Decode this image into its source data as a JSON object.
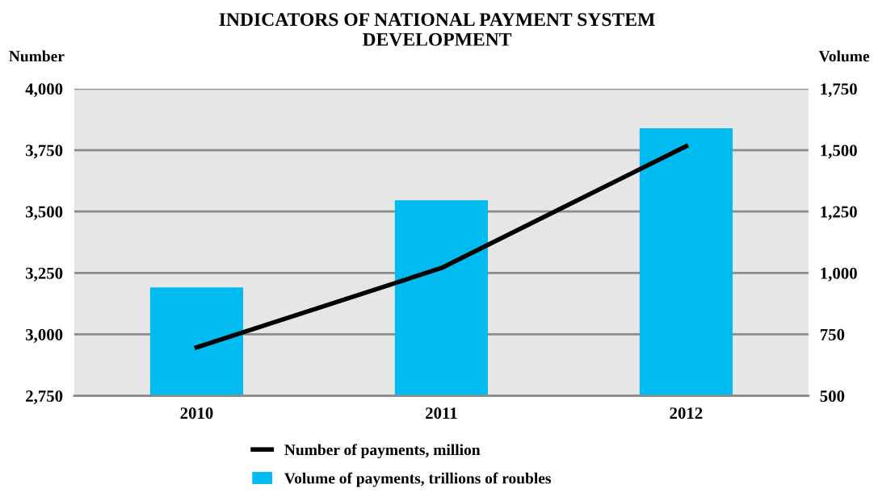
{
  "chart_data": {
    "type": "bar",
    "title": "INDICATORS OF NATIONAL PAYMENT SYSTEM\nDEVELOPMENT",
    "ylabel": "Number",
    "y2label": "Volume",
    "categories": [
      "2010",
      "2011",
      "2012"
    ],
    "series": [
      {
        "name": "Number of payments, million",
        "type": "line",
        "color": "#000000",
        "values": [
          2947,
          3270,
          3766
        ]
      },
      {
        "name": "Volume of payments, trillions of roubles",
        "axis": "y2",
        "color": "#00bbf0",
        "values": [
          941,
          1296,
          1589
        ]
      }
    ],
    "ylim": [
      2750,
      4000
    ],
    "yticks": [
      {
        "value": 2750,
        "label": "2,750"
      },
      {
        "value": 3000,
        "label": "3,000"
      },
      {
        "value": 3250,
        "label": "3,250"
      },
      {
        "value": 3500,
        "label": "3,500"
      },
      {
        "value": 3750,
        "label": "3,750"
      },
      {
        "value": 4000,
        "label": "4,000"
      }
    ],
    "y2lim": [
      500,
      1750
    ],
    "y2ticks": [
      500,
      750,
      {
        "value": 1000,
        "label": "1,000"
      },
      {
        "value": 1250,
        "label": "1,250"
      },
      {
        "value": 1500,
        "label": "1,500"
      },
      {
        "value": 1750,
        "label": "1,750"
      }
    ],
    "grid": "y",
    "legend": "bottom",
    "marker": "none",
    "line_style": "solid"
  }
}
